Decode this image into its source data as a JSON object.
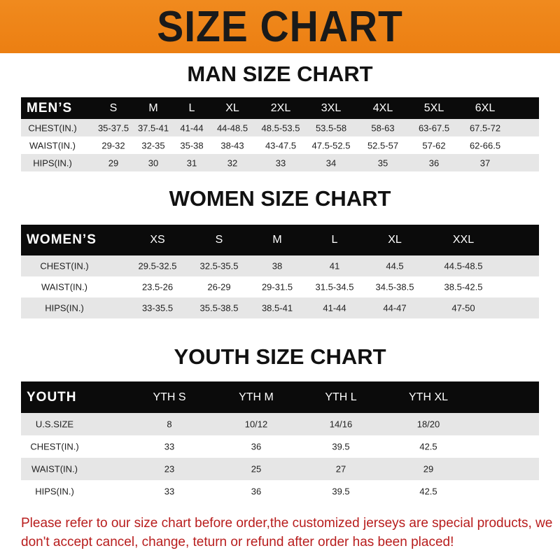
{
  "banner": "SIZE CHART",
  "men": {
    "title": "MAN SIZE CHART",
    "header": [
      "MEN’S",
      "S",
      "M",
      "L",
      "XL",
      "2XL",
      "3XL",
      "4XL",
      "5XL",
      "6XL"
    ],
    "rows": [
      [
        "CHEST(IN.)",
        "35-37.5",
        "37.5-41",
        "41-44",
        "44-48.5",
        "48.5-53.5",
        "53.5-58",
        "58-63",
        "63-67.5",
        "67.5-72"
      ],
      [
        "WAIST(IN.)",
        "29-32",
        "32-35",
        "35-38",
        "38-43",
        "43-47.5",
        "47.5-52.5",
        "52.5-57",
        "57-62",
        "62-66.5"
      ],
      [
        "HIPS(IN.)",
        "29",
        "30",
        "31",
        "32",
        "33",
        "34",
        "35",
        "36",
        "37"
      ]
    ]
  },
  "women": {
    "title": "WOMEN SIZE CHART",
    "header": [
      "WOMEN’S",
      "XS",
      "S",
      "M",
      "L",
      "XL",
      "XXL"
    ],
    "rows": [
      [
        "CHEST(IN.)",
        "29.5-32.5",
        "32.5-35.5",
        "38",
        "41",
        "44.5",
        "44.5-48.5"
      ],
      [
        "WAIST(IN.)",
        "23.5-26",
        "26-29",
        "29-31.5",
        "31.5-34.5",
        "34.5-38.5",
        "38.5-42.5"
      ],
      [
        "HIPS(IN.)",
        "33-35.5",
        "35.5-38.5",
        "38.5-41",
        "41-44",
        "44-47",
        "47-50"
      ]
    ]
  },
  "youth": {
    "title": "YOUTH SIZE CHART",
    "header": [
      "YOUTH",
      "YTH S",
      "YTH M",
      "YTH L",
      "YTH XL"
    ],
    "rows": [
      [
        "U.S.SIZE",
        "8",
        "10/12",
        "14/16",
        "18/20"
      ],
      [
        "CHEST(IN.)",
        "33",
        "36",
        "39.5",
        "42.5"
      ],
      [
        "WAIST(IN.)",
        "23",
        "25",
        "27",
        "29"
      ],
      [
        "HIPS(IN.)",
        "33",
        "36",
        "39.5",
        "42.5"
      ]
    ]
  },
  "note": "Please refer to our size chart before order,the customized jerseys are special products, we don't accept cancel, change, teturn or refund after order has been placed!"
}
